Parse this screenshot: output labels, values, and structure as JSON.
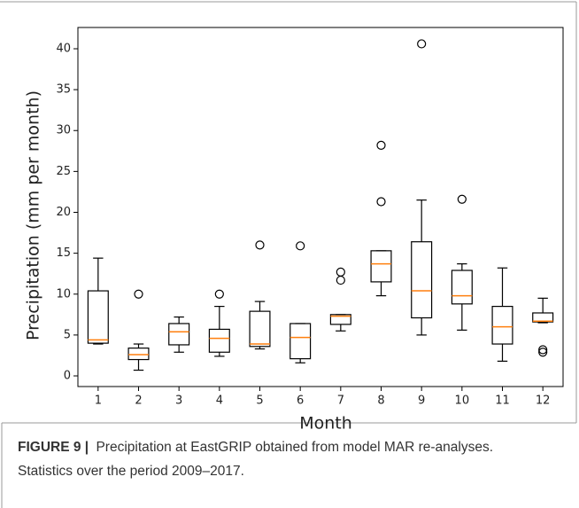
{
  "chart_data": {
    "type": "box",
    "xlabel": "Month",
    "ylabel": "Precipitation (mm per month)",
    "categories": [
      "1",
      "2",
      "3",
      "4",
      "5",
      "6",
      "7",
      "8",
      "9",
      "10",
      "11",
      "12"
    ],
    "box_color": "#000000",
    "median_color": "#ff7f0e",
    "boxes": [
      {
        "whislo": 3.9,
        "q1": 4.0,
        "med": 4.4,
        "q3": 10.4,
        "whishi": 14.4,
        "fliers": []
      },
      {
        "whislo": 0.7,
        "q1": 2.0,
        "med": 2.6,
        "q3": 3.4,
        "whishi": 3.9,
        "fliers": [
          10.0
        ]
      },
      {
        "whislo": 2.9,
        "q1": 3.8,
        "med": 5.4,
        "q3": 6.4,
        "whishi": 7.2,
        "fliers": []
      },
      {
        "whislo": 2.4,
        "q1": 2.9,
        "med": 4.6,
        "q3": 5.7,
        "whishi": 8.5,
        "fliers": [
          10.0
        ]
      },
      {
        "whislo": 3.3,
        "q1": 3.6,
        "med": 3.9,
        "q3": 7.9,
        "whishi": 9.1,
        "fliers": [
          16.0
        ]
      },
      {
        "whislo": 1.6,
        "q1": 2.1,
        "med": 4.7,
        "q3": 6.4,
        "whishi": 6.4,
        "fliers": [
          15.9
        ]
      },
      {
        "whislo": 5.5,
        "q1": 6.3,
        "med": 7.3,
        "q3": 7.5,
        "whishi": 7.5,
        "fliers": [
          11.7,
          12.7
        ]
      },
      {
        "whislo": 9.8,
        "q1": 11.5,
        "med": 13.7,
        "q3": 15.3,
        "whishi": 15.3,
        "fliers": [
          21.3,
          28.2
        ]
      },
      {
        "whislo": 5.0,
        "q1": 7.1,
        "med": 10.4,
        "q3": 16.4,
        "whishi": 21.5,
        "fliers": [
          40.6
        ]
      },
      {
        "whislo": 5.6,
        "q1": 8.8,
        "med": 9.8,
        "q3": 12.9,
        "whishi": 13.7,
        "fliers": [
          21.6
        ]
      },
      {
        "whislo": 1.8,
        "q1": 3.9,
        "med": 6.0,
        "q3": 8.5,
        "whishi": 13.2,
        "fliers": []
      },
      {
        "whislo": 6.5,
        "q1": 6.6,
        "med": 6.7,
        "q3": 7.7,
        "whishi": 9.5,
        "fliers": [
          2.9,
          3.2
        ]
      }
    ],
    "ylim": [
      -1.3,
      42.6
    ],
    "yticks": [
      0,
      5,
      10,
      15,
      20,
      25,
      30,
      35,
      40
    ],
    "grid": false
  },
  "caption": {
    "label": "FIGURE 9 |",
    "lines": [
      "Precipitation at EastGRIP obtained from model MAR re-analyses.",
      "Statistics over the period 2009–2017."
    ]
  }
}
